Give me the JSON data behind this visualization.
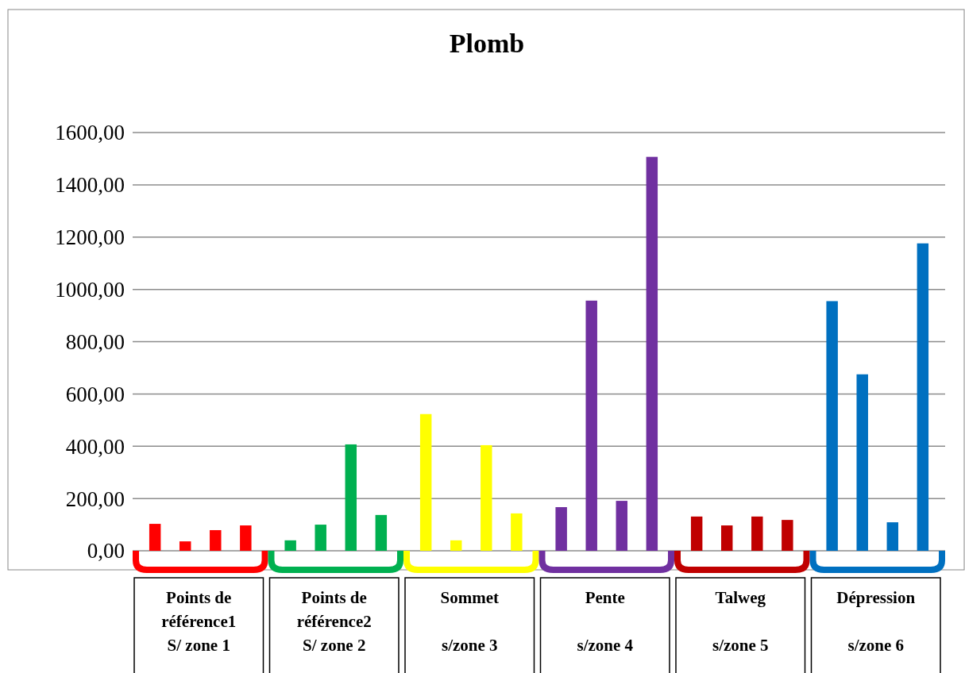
{
  "chart_data": {
    "type": "bar",
    "title": "Plomb",
    "categories": [
      "Points de\nréférence1\nS/ zone 1",
      "Points de\nréférence2\nS/ zone 2",
      "Sommet\n\ns/zone 3",
      "Pente\n\ns/zone 4",
      "Talweg\n\ns/zone 5",
      "Dépression\n\ns/zone 6"
    ],
    "series": [
      {
        "colors": [
          "#ff0000",
          "#00b050",
          "#ffff00",
          "#7030a0",
          "#c00000",
          "#0070c0"
        ],
        "values": [
          103,
          40,
          523,
          167,
          131,
          955
        ]
      },
      {
        "colors": [
          "#ff0000",
          "#00b050",
          "#ffff00",
          "#7030a0",
          "#c00000",
          "#0070c0"
        ],
        "values": [
          36,
          100,
          40,
          957,
          97,
          675
        ]
      },
      {
        "colors": [
          "#ff0000",
          "#00b050",
          "#ffff00",
          "#7030a0",
          "#c00000",
          "#0070c0"
        ],
        "values": [
          79,
          407,
          404,
          191,
          131,
          109
        ]
      },
      {
        "colors": [
          "#ff0000",
          "#00b050",
          "#ffff00",
          "#7030a0",
          "#c00000",
          "#0070c0"
        ],
        "values": [
          97,
          137,
          143,
          1507,
          118,
          1176
        ]
      }
    ],
    "ylim": [
      0,
      1600
    ],
    "yticks": [
      {
        "value": 0,
        "label": "0,00"
      },
      {
        "value": 200,
        "label": "200,00"
      },
      {
        "value": 400,
        "label": "400,00"
      },
      {
        "value": 600,
        "label": "600,00"
      },
      {
        "value": 800,
        "label": "800,00"
      },
      {
        "value": 1000,
        "label": "1000,00"
      },
      {
        "value": 1200,
        "label": "1200,00"
      },
      {
        "value": 1400,
        "label": "1400,00"
      },
      {
        "value": 1600,
        "label": "1600,00"
      }
    ],
    "grid": "y"
  }
}
